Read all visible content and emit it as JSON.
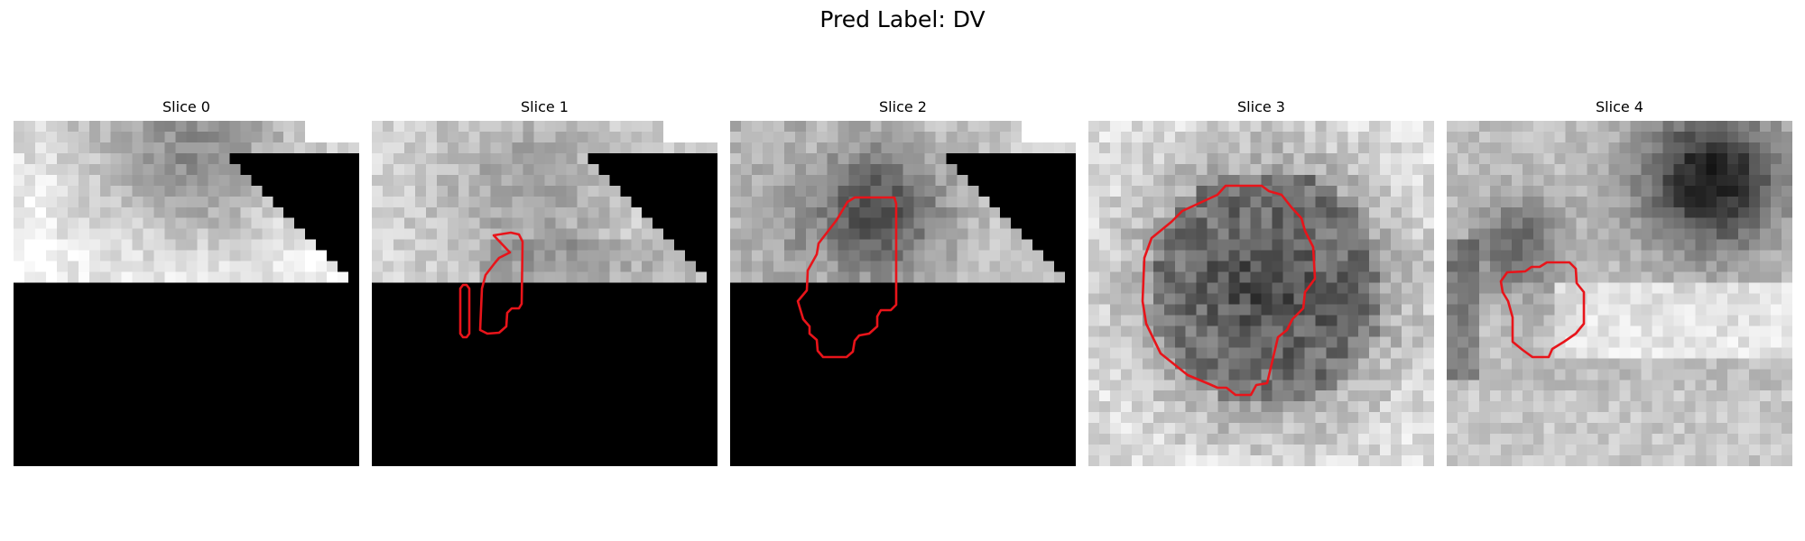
{
  "figure": {
    "title": "Pred Label: DV",
    "contour_color": "#e8141a",
    "slices": [
      {
        "title": "Slice 0"
      },
      {
        "title": "Slice 1"
      },
      {
        "title": "Slice 2"
      },
      {
        "title": "Slice 3"
      },
      {
        "title": "Slice 4"
      }
    ]
  }
}
